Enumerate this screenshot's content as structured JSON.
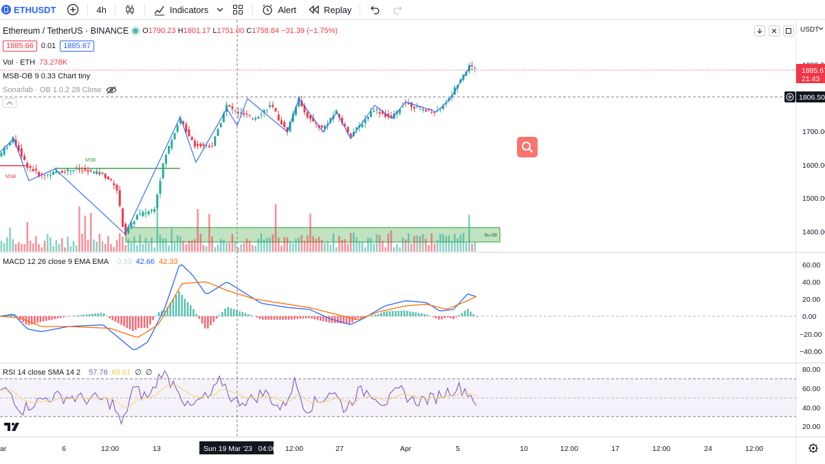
{
  "toolbar": {
    "symbol": "ETHUSDT",
    "interval": "4h",
    "indicators": "Indicators",
    "alert": "Alert",
    "replay": "Replay"
  },
  "header": {
    "pair": "Ethereum / TetherUS · BINANCE",
    "open_label": "O",
    "open": "1790.23",
    "high_label": "H",
    "high": "1801.17",
    "low_label": "L",
    "low": "1751.00",
    "close_label": "C",
    "close": "1758.84",
    "change": "−31.39 (−1.75%)",
    "bid": "1885.66",
    "spread": "0.01",
    "ask": "1885.67"
  },
  "indicators": {
    "vol_name": "Vol · ETH",
    "vol_value": "73.278K",
    "msb_name": "MSB-OB 9 0.33 Chart tiny",
    "sonar_name": "Sonarlab · OB 1.0.2 28 Close",
    "macd_name": "MACD 12 26 close 9 EMA EMA",
    "macd_hist": "0.33",
    "macd_line": "42.66",
    "macd_signal": "42.33",
    "rsi_name": "RSI 14 close SMA 14 2",
    "rsi_value": "57.76",
    "rsi_sma": "65.01",
    "rsi_extra1": "∅",
    "rsi_extra2": "∅"
  },
  "annotations": {
    "msb_top": "MSB",
    "msb_left": "MSB",
    "bu_ob": "Bu-OB"
  },
  "price_axis": {
    "currency": "USDT",
    "ticks": [
      "1900.00",
      "1800.00",
      "1700.00",
      "1600.00",
      "1500.00",
      "1400.00"
    ],
    "last_price": "1885.67",
    "countdown": "21:43",
    "crosshair_price": "1806.50"
  },
  "macd_axis": {
    "ticks": [
      "60.00",
      "40.00",
      "20.00",
      "0.00",
      "−20.00",
      "−40.00"
    ]
  },
  "rsi_axis": {
    "ticks": [
      "80.00",
      "60.00",
      "40.00",
      "20.00"
    ]
  },
  "time_axis": {
    "labels": [
      "ar",
      "6",
      "12:00",
      "13",
      "",
      "12:00",
      "27",
      "Apr",
      "5",
      "10",
      "12:00",
      "17",
      "12:00",
      "24",
      "12:00"
    ],
    "crosshair_time": "Sun 19 Mar '23   04:00"
  },
  "colors": {
    "up": "#22ab94",
    "down": "#f23645",
    "accent": "#2962ff",
    "macd": "#2962ff",
    "signal": "#ff6d00",
    "rsi": "#7e57c2"
  }
}
